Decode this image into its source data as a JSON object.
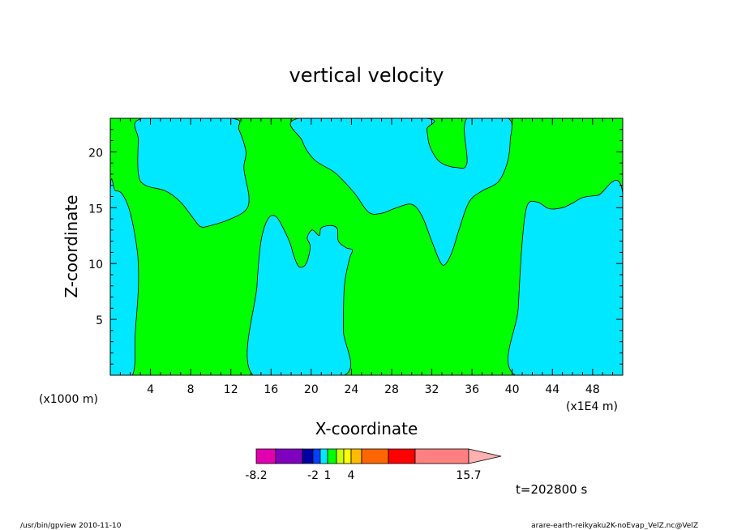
{
  "chart_data": {
    "type": "heatmap",
    "title": "vertical velocity",
    "xlabel": "X-coordinate",
    "ylabel": "Z-coordinate",
    "x_unit_left": "(x1000 m)",
    "x_unit_right": "(x1E4 m)",
    "xlim": [
      0,
      51
    ],
    "ylim": [
      0,
      23
    ],
    "xticks": [
      4,
      8,
      12,
      16,
      20,
      24,
      28,
      32,
      36,
      40,
      44,
      48
    ],
    "yticks": [
      5,
      10,
      15,
      20
    ],
    "colorbar": {
      "labels": [
        {
          "text": "-8.2",
          "value": -8.2
        },
        {
          "text": "-2",
          "value": -2
        },
        {
          "text": "1",
          "value": 1
        },
        {
          "text": "4",
          "value": 4
        },
        {
          "text": "15.7",
          "value": 15.7
        }
      ],
      "colors": [
        "#e000b0",
        "#8000c0",
        "#0000a0",
        "#0040ff",
        "#00e8ff",
        "#00ff00",
        "#ccff00",
        "#ffff00",
        "#ffbb00",
        "#ff6600",
        "#ff0000",
        "#ff8080"
      ],
      "arrow_color": "#ffb0b0"
    },
    "fill_colors": {
      "positive": "#00ff00",
      "negative": "#00e8ff"
    },
    "regions": [
      {
        "sign": "negative",
        "points": [
          [
            0,
            0
          ],
          [
            0,
            16.3
          ],
          [
            0.5,
            16.5
          ],
          [
            1.2,
            16.2
          ],
          [
            2,
            14.5
          ],
          [
            2.7,
            11
          ],
          [
            2.8,
            8
          ],
          [
            2.5,
            4
          ],
          [
            2.2,
            0
          ]
        ]
      },
      {
        "sign": "negative",
        "points": [
          [
            3.2,
            23
          ],
          [
            2.8,
            21
          ],
          [
            2.8,
            18
          ],
          [
            3.5,
            17
          ],
          [
            5.5,
            16.5
          ],
          [
            7,
            15.5
          ],
          [
            8.3,
            14
          ],
          [
            9,
            13.3
          ],
          [
            10,
            13.4
          ],
          [
            12,
            14
          ],
          [
            13.5,
            14.8
          ],
          [
            13.8,
            16
          ],
          [
            13.3,
            18.5
          ],
          [
            13.5,
            20
          ],
          [
            12.8,
            22
          ],
          [
            12,
            23
          ]
        ]
      },
      {
        "sign": "negative",
        "points": [
          [
            14.2,
            0
          ],
          [
            14.6,
            8
          ],
          [
            15,
            12
          ],
          [
            15.7,
            14
          ],
          [
            16.5,
            14.2
          ],
          [
            17.3,
            13
          ],
          [
            17.9,
            11.8
          ],
          [
            18.3,
            10.6
          ],
          [
            18.8,
            9.7
          ],
          [
            19.5,
            10
          ],
          [
            19.9,
            11.5
          ],
          [
            19.6,
            12.3
          ],
          [
            20.1,
            13
          ],
          [
            20.8,
            12.5
          ],
          [
            21,
            13.2
          ],
          [
            22,
            13.4
          ],
          [
            22.6,
            13.1
          ],
          [
            22.7,
            12
          ],
          [
            23.5,
            11.4
          ],
          [
            24.1,
            11.2
          ],
          [
            23.8,
            10.4
          ],
          [
            23.3,
            8
          ],
          [
            23.2,
            4
          ],
          [
            23.3,
            0
          ]
        ]
      },
      {
        "sign": "negative",
        "points": [
          [
            18.8,
            23
          ],
          [
            19.1,
            21
          ],
          [
            20.3,
            19.3
          ],
          [
            22.4,
            18.1
          ],
          [
            24.3,
            16.3
          ],
          [
            25.7,
            14.6
          ],
          [
            27,
            14.5
          ],
          [
            28.5,
            15
          ],
          [
            30,
            15.3
          ],
          [
            31,
            14.3
          ],
          [
            32,
            12
          ],
          [
            32.8,
            10.2
          ],
          [
            33.3,
            9.9
          ],
          [
            34,
            11
          ],
          [
            34.7,
            13
          ],
          [
            35.7,
            15.5
          ],
          [
            37,
            16.5
          ],
          [
            38.6,
            17.3
          ],
          [
            39.5,
            19
          ],
          [
            39.8,
            21
          ],
          [
            39.6,
            23
          ],
          [
            35.5,
            23
          ],
          [
            35.5,
            19
          ],
          [
            34.4,
            18.6
          ],
          [
            32.8,
            19.1
          ],
          [
            31.8,
            20.5
          ],
          [
            31.5,
            22
          ],
          [
            31.3,
            23
          ]
        ]
      },
      {
        "sign": "negative",
        "points": [
          [
            40.3,
            0
          ],
          [
            40.6,
            6
          ],
          [
            41,
            12
          ],
          [
            41.5,
            15.2
          ],
          [
            42.5,
            15.5
          ],
          [
            43.7,
            14.9
          ],
          [
            45,
            15
          ],
          [
            46,
            15.4
          ],
          [
            47,
            15.9
          ],
          [
            48.5,
            16.1
          ],
          [
            51,
            16.3
          ],
          [
            51,
            0
          ]
        ]
      }
    ]
  },
  "footer": {
    "left": "/usr/bin/gpview  2010-11-10",
    "right": "arare-earth-reikyaku2K-noEvap_VelZ.nc@VelZ",
    "time_label": "t=202800 s"
  }
}
